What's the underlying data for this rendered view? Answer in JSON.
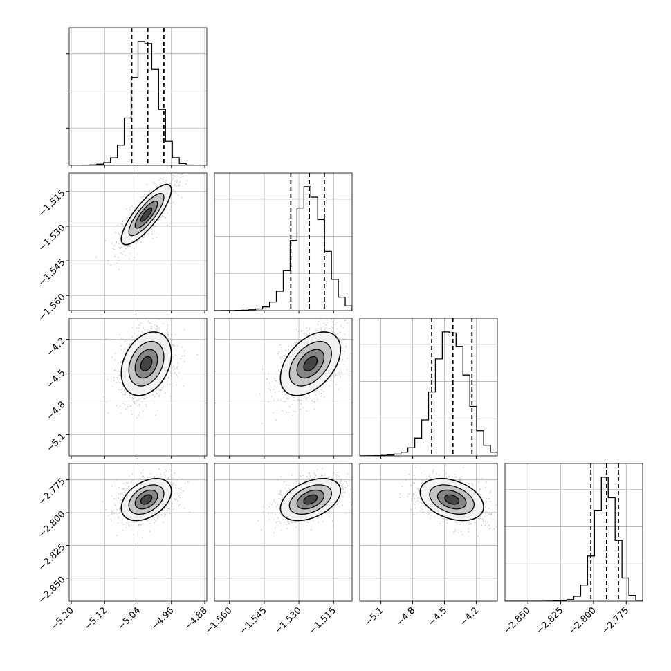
{
  "chart_data": {
    "type": "corner",
    "n_params": 4,
    "colors": {
      "line": "#000000",
      "grid": "#b0b0b0",
      "scatter": "#9a9a9a",
      "frame": "#000000"
    },
    "params": [
      {
        "range": [
          -5.205,
          -4.875
        ],
        "ticks": [
          -5.2,
          -5.12,
          -5.04,
          -4.96,
          -4.88
        ],
        "tick_labels": [
          "−5.20",
          "−5.12",
          "−5.04",
          "−4.96",
          "−4.88"
        ],
        "mean": -5.02,
        "sd": 0.03,
        "quantiles": [
          -5.055,
          -5.0165,
          -4.978
        ]
      },
      {
        "range": [
          -1.5665,
          -1.507
        ],
        "ticks": [
          -1.56,
          -1.545,
          -1.53,
          -1.515
        ],
        "tick_labels": [
          "−1.560",
          "−1.545",
          "−1.530",
          "−1.515"
        ],
        "mean": -1.525,
        "sd": 0.0065,
        "quantiles": [
          -1.5335,
          -1.5255,
          -1.519
        ]
      },
      {
        "range": [
          -5.3,
          -4.0
        ],
        "ticks": [
          -5.1,
          -4.8,
          -4.5,
          -4.2
        ],
        "tick_labels": [
          "−5.1",
          "−4.8",
          "−4.5",
          "−4.2"
        ],
        "mean": -4.43,
        "sd": 0.15,
        "quantiles": [
          -4.62,
          -4.42,
          -4.24
        ]
      },
      {
        "range": [
          -2.8675,
          -2.7625
        ],
        "ticks": [
          -2.85,
          -2.825,
          -2.8,
          -2.775
        ],
        "tick_labels": [
          "−2.850",
          "−2.825",
          "−2.800",
          "−2.775"
        ],
        "mean": -2.79,
        "sd": 0.008,
        "quantiles": [
          -2.802,
          -2.79,
          -2.781
        ]
      }
    ],
    "correlations": [
      [
        1,
        0.82,
        0.3,
        0.4
      ],
      [
        0.82,
        1,
        0.45,
        0.42
      ],
      [
        0.3,
        0.45,
        1,
        -0.35
      ],
      [
        0.4,
        0.42,
        -0.35,
        1
      ]
    ],
    "grid": true,
    "title": "",
    "xlabel": "",
    "ylabel": ""
  }
}
